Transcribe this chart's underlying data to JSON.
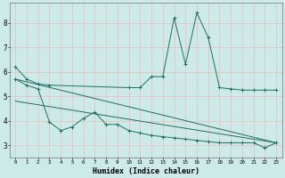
{
  "xlabel": "Humidex (Indice chaleur)",
  "x_ticks": [
    0,
    1,
    2,
    3,
    4,
    5,
    6,
    7,
    8,
    9,
    10,
    11,
    12,
    13,
    14,
    15,
    16,
    17,
    18,
    19,
    20,
    21,
    22,
    23
  ],
  "ylim": [
    2.5,
    8.8
  ],
  "xlim": [
    -0.5,
    23.5
  ],
  "bg_color": "#cceae8",
  "line_color": "#1e6e62",
  "grid_color": "#f0b8b8",
  "series1": {
    "x": [
      0,
      1,
      2,
      3,
      10,
      11,
      12,
      13,
      14,
      15,
      16,
      17,
      18,
      19,
      20,
      21,
      22,
      23
    ],
    "y": [
      6.2,
      5.7,
      5.5,
      5.45,
      5.35,
      5.35,
      5.8,
      5.8,
      8.2,
      6.3,
      8.4,
      7.4,
      5.35,
      5.3,
      5.25,
      5.25,
      5.25,
      5.25
    ]
  },
  "series2": {
    "x": [
      0,
      1,
      2,
      3,
      4,
      5,
      6,
      7,
      8,
      9,
      10,
      11,
      12,
      13,
      14,
      15,
      16,
      17,
      18,
      19,
      20,
      21,
      22,
      23
    ],
    "y": [
      5.7,
      5.45,
      5.3,
      3.95,
      3.6,
      3.75,
      4.1,
      4.35,
      3.85,
      3.85,
      3.6,
      3.5,
      3.4,
      3.35,
      3.3,
      3.25,
      3.2,
      3.15,
      3.1,
      3.1,
      3.1,
      3.1,
      2.9,
      3.1
    ]
  },
  "series3": {
    "x": [
      0,
      23
    ],
    "y": [
      5.7,
      3.1
    ]
  },
  "series4": {
    "x": [
      0,
      23
    ],
    "y": [
      4.8,
      3.1
    ]
  },
  "yticks": [
    3,
    4,
    5,
    6,
    7,
    8
  ]
}
